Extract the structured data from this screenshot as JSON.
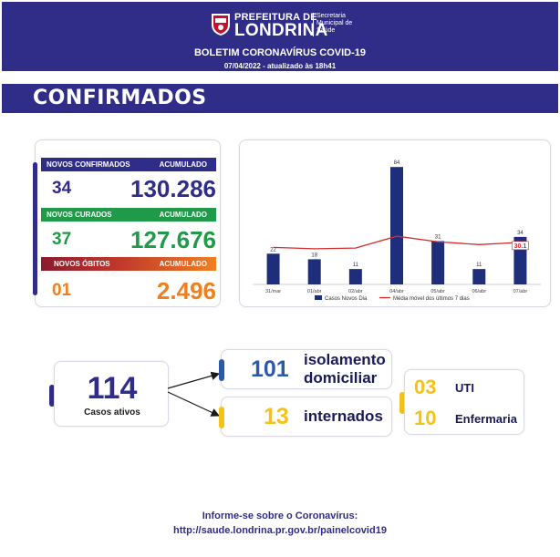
{
  "header": {
    "brand_top": "PREFEITURA DE",
    "brand_main": "LONDRINA",
    "brand_sub": [
      "Secretaria",
      "Municipal de",
      "Saúde"
    ],
    "bulletin_title": "BOLETIM CORONAVÍRUS COVID-19",
    "dateline": "07/04/2022 - atualizado às 18h41"
  },
  "section_title": "CONFIRMADOS",
  "stats": {
    "confirmed": {
      "label": "NOVOS CONFIRMADOS",
      "acc_label": "ACUMULADO",
      "new": "34",
      "total": "130.286"
    },
    "recovered": {
      "label": "NOVOS CURADOS",
      "acc_label": "ACUMULADO",
      "new": "37",
      "total": "127.676"
    },
    "deaths": {
      "label": "NOVOS ÓBITOS",
      "acc_label": "ACUMULADO",
      "new": "01",
      "total": "2.496"
    }
  },
  "colors": {
    "navy": "#2f2d87",
    "green": "#1f9a48",
    "orange": "#f07f22",
    "dark_red": "#8b1a2c",
    "yellow": "#f3c21b",
    "blue_accent": "#2c5aa8",
    "series_bar": "#1f2e7a",
    "series_line": "#d62b2b"
  },
  "chart_data": {
    "type": "bar",
    "categories": [
      "31/mar",
      "01/abr",
      "02/abr",
      "04/abr",
      "05/abr",
      "06/abr",
      "07/abr"
    ],
    "series": [
      {
        "name": "Casos Novos Dia",
        "type": "bar",
        "values": [
          22,
          18,
          11,
          84,
          31,
          11,
          34
        ]
      },
      {
        "name": "Média móvel dos últimos 7 dias",
        "type": "line",
        "values": [
          26.5,
          25.5,
          26,
          34.5,
          30.5,
          28.5,
          30.1
        ]
      }
    ],
    "data_labels": [
      "22",
      "18",
      "11",
      "84",
      "31",
      "11",
      "34"
    ],
    "line_label": "30.1",
    "ylim": [
      0,
      90
    ],
    "legend": "bottom"
  },
  "active": {
    "count": "114",
    "label": "Casos ativos",
    "home": {
      "value": "101",
      "label_line1": "isolamento",
      "label_line2": "domiciliar"
    },
    "hospital": {
      "value": "13",
      "label": "internados"
    },
    "uti": {
      "value": "03",
      "label": "UTI"
    },
    "ward": {
      "value": "10",
      "label": "Enfermaria"
    }
  },
  "footer": {
    "line1": "Informe-se sobre o Coronavírus:",
    "line2": "http://saude.londrina.pr.gov.br/painelcovid19"
  }
}
